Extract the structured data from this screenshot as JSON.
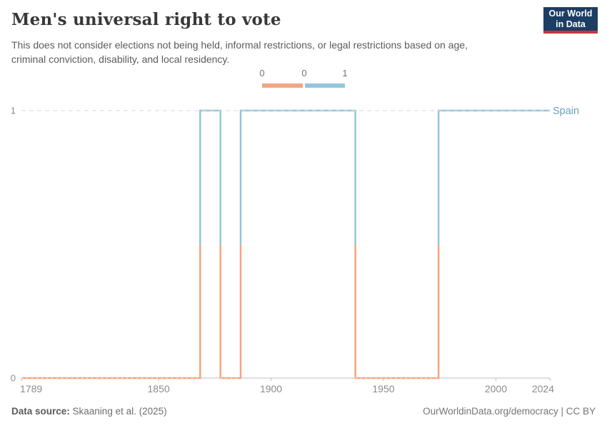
{
  "header": {
    "title": "Men's universal right to vote",
    "subtitle": "This does not consider elections not being held, informal restrictions, or legal restrictions based on age, criminal conviction, disability, and local residency.",
    "logo": {
      "line1": "Our World",
      "line2": "in Data",
      "bg_color": "#1d3d63",
      "accent_color": "#c5353d"
    }
  },
  "legend": {
    "labels": [
      "0",
      "0",
      "1"
    ],
    "bins": [
      {
        "value": 0,
        "color": "#f4a582"
      },
      {
        "value": 1,
        "color": "#92c5de"
      }
    ]
  },
  "chart_data": {
    "type": "line",
    "style": "step",
    "title": "Men's universal right to vote",
    "xlabel": "",
    "ylabel": "",
    "xlim": [
      1789,
      2024
    ],
    "ylim": [
      0,
      1
    ],
    "x_ticks": [
      1789,
      1850,
      1900,
      1950,
      2000,
      2024
    ],
    "y_ticks": [
      1,
      0
    ],
    "grid": "dashed-at-1",
    "legend_position": "top-center",
    "series": [
      {
        "name": "Spain",
        "segments": [
          {
            "from": 1789,
            "to": 1868,
            "value": 0
          },
          {
            "from": 1869,
            "to": 1877,
            "value": 1
          },
          {
            "from": 1878,
            "to": 1886,
            "value": 0
          },
          {
            "from": 1887,
            "to": 1937,
            "value": 1
          },
          {
            "from": 1938,
            "to": 1974,
            "value": 0
          },
          {
            "from": 1975,
            "to": 2024,
            "value": 1
          }
        ]
      }
    ],
    "colors": {
      "value0": "#f4a582",
      "value1": "#92c5de",
      "entity_label": "#6d9fc0",
      "axis": "#bdbdbd",
      "gridline": "#d9d9d9",
      "tick_text": "#8b8b8b"
    },
    "entity_label": "Spain"
  },
  "footer": {
    "source_label": "Data source:",
    "source_value": " Skaaning et al. (2025)",
    "rights": "OurWorldinData.org/democracy | CC BY"
  }
}
